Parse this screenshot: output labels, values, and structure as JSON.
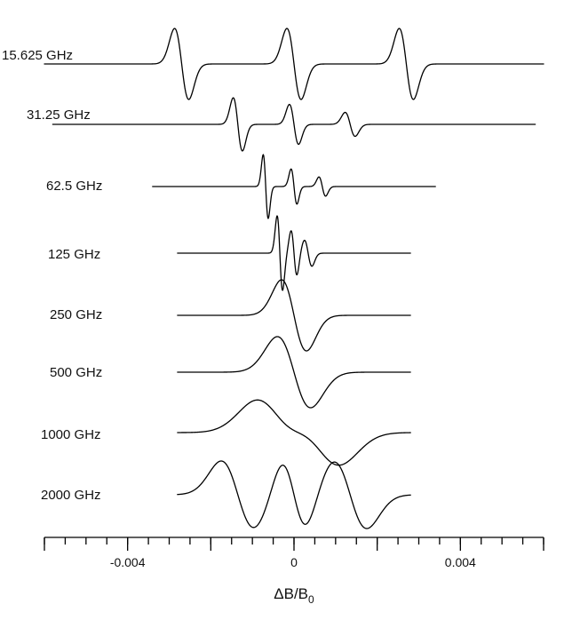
{
  "chart_data": {
    "type": "line",
    "xlabel": "ΔB/B0",
    "xlabel_main": "ΔB/B",
    "xlabel_sub": "0",
    "xlim": [
      -0.006,
      0.006
    ],
    "x_ticks": [
      -0.004,
      0,
      0.004
    ],
    "x_tick_labels": [
      "-0.004",
      "0",
      "0.004"
    ],
    "minor_tick_step": 0.0005,
    "grid": false,
    "series": [
      {
        "name": "15.625 GHz",
        "x_range": [
          -0.006,
          0.006
        ],
        "components": [
          {
            "center": -0.0027,
            "amp": 1.0,
            "width": 0.00017,
            "shape": "derivative"
          },
          {
            "center": 0.0,
            "amp": 1.0,
            "width": 0.00017,
            "shape": "derivative"
          },
          {
            "center": 0.0027,
            "amp": 1.0,
            "width": 0.00017,
            "shape": "derivative"
          }
        ]
      },
      {
        "name": "31.25 GHz",
        "x_range": [
          -0.0058,
          0.0058
        ],
        "components": [
          {
            "center": -0.00135,
            "amp": 1.0,
            "width": 0.00011,
            "shape": "derivative"
          },
          {
            "center": 0.0,
            "amp": 0.75,
            "width": 0.00011,
            "shape": "derivative"
          },
          {
            "center": 0.00135,
            "amp": 0.45,
            "width": 0.00012,
            "shape": "derivative"
          }
        ]
      },
      {
        "name": "62.5 GHz",
        "x_range": [
          -0.0034,
          0.0034
        ],
        "components": [
          {
            "center": -0.00068,
            "amp": 1.0,
            "width": 6e-05,
            "shape": "derivative"
          },
          {
            "center": 0.0,
            "amp": 0.55,
            "width": 7e-05,
            "shape": "derivative"
          },
          {
            "center": 0.00068,
            "amp": 0.3,
            "width": 8e-05,
            "shape": "derivative"
          }
        ]
      },
      {
        "name": "125 GHz",
        "x_range": [
          -0.0028,
          0.0028
        ],
        "components": [
          {
            "center": -0.00034,
            "amp": 1.0,
            "width": 6.5e-05,
            "shape": "derivative"
          },
          {
            "center": 0.0,
            "amp": 0.6,
            "width": 7e-05,
            "shape": "derivative"
          },
          {
            "center": 0.00034,
            "amp": 0.35,
            "width": 9e-05,
            "shape": "derivative"
          }
        ]
      },
      {
        "name": "250 GHz",
        "x_range": [
          -0.0028,
          0.0028
        ],
        "components": [
          {
            "center": 0.0,
            "amp": 1.0,
            "width": 0.0003,
            "shape": "derivative"
          }
        ]
      },
      {
        "name": "500 GHz",
        "x_range": [
          -0.0028,
          0.0028
        ],
        "components": [
          {
            "center": 0.0,
            "amp": 1.0,
            "width": 0.0004,
            "shape": "derivative"
          }
        ]
      },
      {
        "name": "1000 GHz",
        "x_range": [
          -0.0028,
          0.0028
        ],
        "components": [
          {
            "center": -0.0004,
            "amp": 0.9,
            "width": 0.00055,
            "shape": "derivative"
          },
          {
            "center": 0.0006,
            "amp": 0.9,
            "width": 0.00055,
            "shape": "derivative"
          }
        ]
      },
      {
        "name": "2000 GHz",
        "x_range": [
          -0.0028,
          0.0028
        ],
        "components": [
          {
            "center": -0.00135,
            "amp": 1.0,
            "width": 0.0004,
            "shape": "derivative"
          },
          {
            "center": 0.0,
            "amp": 1.0,
            "width": 0.0003,
            "shape": "derivative"
          },
          {
            "center": 0.00135,
            "amp": 1.0,
            "width": 0.0004,
            "shape": "derivative"
          }
        ]
      }
    ]
  }
}
